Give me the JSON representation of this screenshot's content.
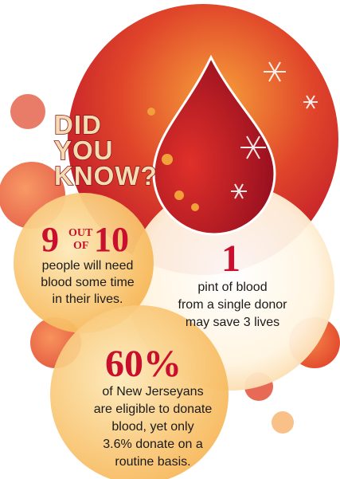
{
  "header": {
    "lines": [
      "DID",
      "YOU",
      "KNOW?"
    ]
  },
  "facts": [
    {
      "number": "9",
      "small_top": "OUT",
      "small_bottom": "OF",
      "number2": "10",
      "lines": [
        "people will need",
        "blood some time",
        "in their lives."
      ]
    },
    {
      "number": "1",
      "lines": [
        "pint of blood",
        "from a single donor",
        "may save 3 lives"
      ]
    },
    {
      "number": "60%",
      "lines": [
        "of New Jerseyans",
        "are eligible to donate",
        "blood, yet only",
        "3.6% donate on a",
        "routine basis."
      ]
    }
  ]
}
